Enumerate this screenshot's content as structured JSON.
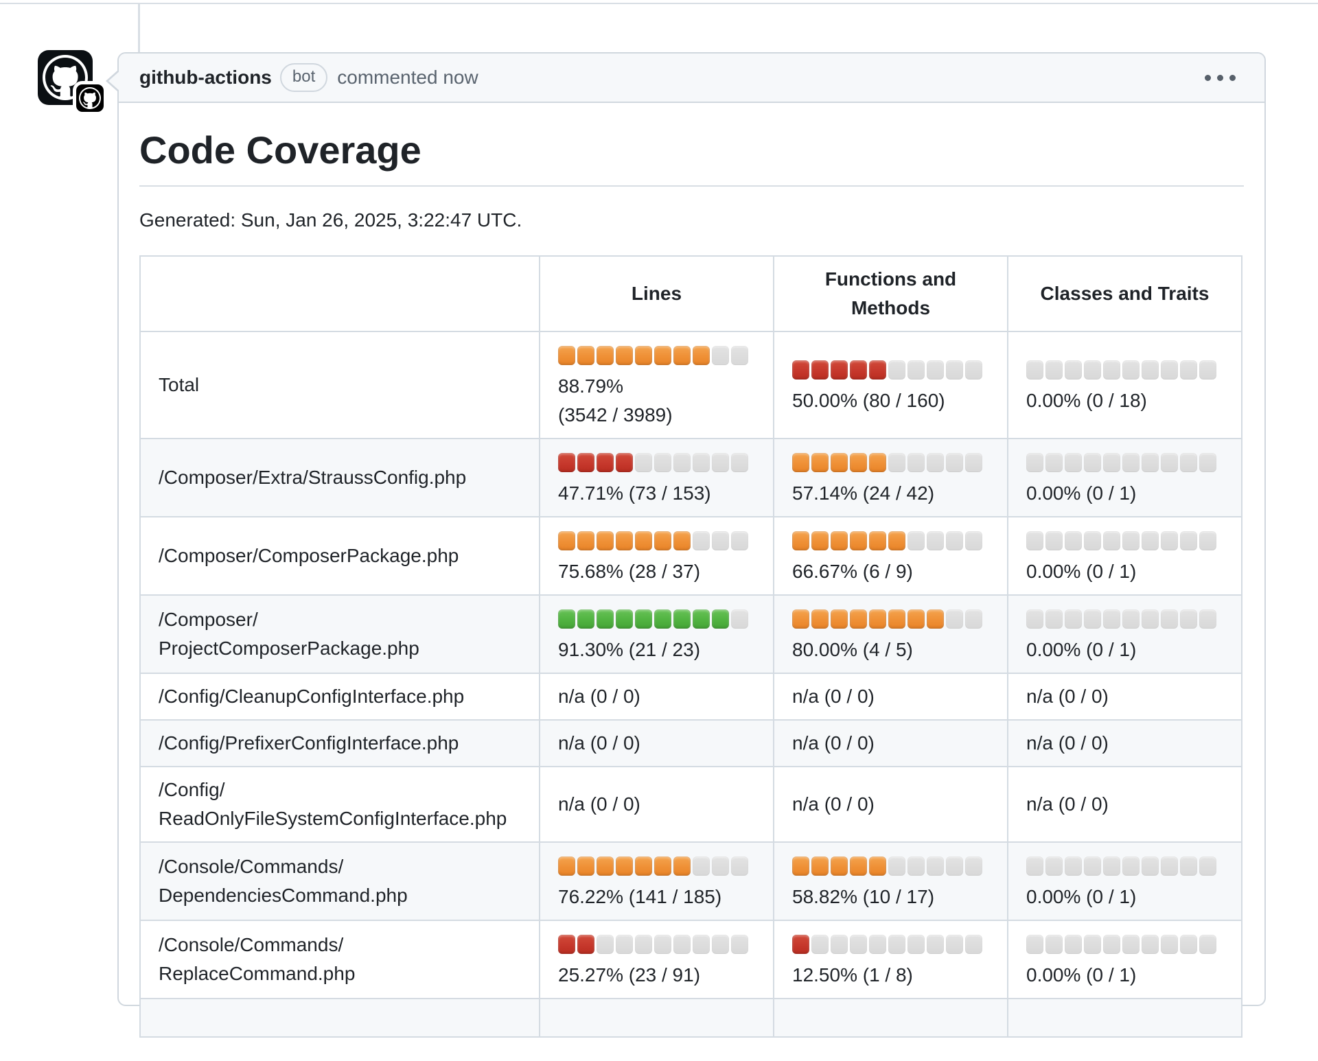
{
  "comment": {
    "author": "github-actions",
    "badge": "bot",
    "meta": "commented now",
    "kebab_icon": "kebab-horizontal",
    "title": "Code Coverage",
    "generated_line": "Generated: Sun, Jan 26, 2025, 3:22:47 UTC."
  },
  "colors": {
    "bar_orange": "#ef9036",
    "bar_red": "#c6382c",
    "bar_green": "#51b341",
    "bar_empty": "#dcdcdc",
    "header_bg": "#f6f8fa",
    "row_stripe": "#f6f8fa",
    "border": "#d0d7de",
    "text_primary": "#1f2328",
    "text_secondary": "#59636e"
  },
  "coverage_table": {
    "columns": [
      "",
      "Lines",
      "Functions and\nMethods",
      "Classes and Traits"
    ],
    "bar_segments_total": 10,
    "rows": [
      {
        "label": "Total",
        "cells": [
          {
            "bar": true,
            "filled": 8,
            "color": "orange",
            "text": "88.79%\n(3542 / 3989)"
          },
          {
            "bar": true,
            "filled": 5,
            "color": "red",
            "text": "50.00% (80 / 160)"
          },
          {
            "bar": true,
            "filled": 0,
            "color": "empty",
            "text": "0.00% (0 / 18)"
          }
        ]
      },
      {
        "label": "/Composer/Extra/StraussConfig.php",
        "cells": [
          {
            "bar": true,
            "filled": 4,
            "color": "red",
            "text": "47.71% (73 / 153)"
          },
          {
            "bar": true,
            "filled": 5,
            "color": "orange",
            "text": "57.14% (24 / 42)"
          },
          {
            "bar": true,
            "filled": 0,
            "color": "empty",
            "text": "0.00% (0 / 1)"
          }
        ]
      },
      {
        "label": "/Composer/ComposerPackage.php",
        "cells": [
          {
            "bar": true,
            "filled": 7,
            "color": "orange",
            "text": "75.68% (28 / 37)"
          },
          {
            "bar": true,
            "filled": 6,
            "color": "orange",
            "text": "66.67% (6 / 9)"
          },
          {
            "bar": true,
            "filled": 0,
            "color": "empty",
            "text": "0.00% (0 / 1)"
          }
        ]
      },
      {
        "label": "/Composer/\nProjectComposerPackage.php",
        "cells": [
          {
            "bar": true,
            "filled": 9,
            "color": "green",
            "text": "91.30% (21 / 23)"
          },
          {
            "bar": true,
            "filled": 8,
            "color": "orange",
            "text": "80.00% (4 / 5)"
          },
          {
            "bar": true,
            "filled": 0,
            "color": "empty",
            "text": "0.00% (0 / 1)"
          }
        ]
      },
      {
        "label": "/Config/CleanupConfigInterface.php",
        "cells": [
          {
            "bar": false,
            "text": "n/a (0 / 0)"
          },
          {
            "bar": false,
            "text": "n/a (0 / 0)"
          },
          {
            "bar": false,
            "text": "n/a (0 / 0)"
          }
        ]
      },
      {
        "label": "/Config/PrefixerConfigInterface.php",
        "cells": [
          {
            "bar": false,
            "text": "n/a (0 / 0)"
          },
          {
            "bar": false,
            "text": "n/a (0 / 0)"
          },
          {
            "bar": false,
            "text": "n/a (0 / 0)"
          }
        ]
      },
      {
        "label": "/Config/\nReadOnlyFileSystemConfigInterface.php",
        "cells": [
          {
            "bar": false,
            "text": "n/a (0 / 0)"
          },
          {
            "bar": false,
            "text": "n/a (0 / 0)"
          },
          {
            "bar": false,
            "text": "n/a (0 / 0)"
          }
        ]
      },
      {
        "label": "/Console/Commands/\nDependenciesCommand.php",
        "cells": [
          {
            "bar": true,
            "filled": 7,
            "color": "orange",
            "text": "76.22% (141 / 185)"
          },
          {
            "bar": true,
            "filled": 5,
            "color": "orange",
            "text": "58.82% (10 / 17)"
          },
          {
            "bar": true,
            "filled": 0,
            "color": "empty",
            "text": "0.00% (0 / 1)"
          }
        ]
      },
      {
        "label": "/Console/Commands/\nReplaceCommand.php",
        "cells": [
          {
            "bar": true,
            "filled": 2,
            "color": "red",
            "text": "25.27% (23 / 91)"
          },
          {
            "bar": true,
            "filled": 1,
            "color": "red",
            "text": "12.50% (1 / 8)"
          },
          {
            "bar": true,
            "filled": 0,
            "color": "empty",
            "text": "0.00% (0 / 1)"
          }
        ]
      },
      {
        "label": "",
        "partial": true,
        "cells": []
      }
    ]
  }
}
